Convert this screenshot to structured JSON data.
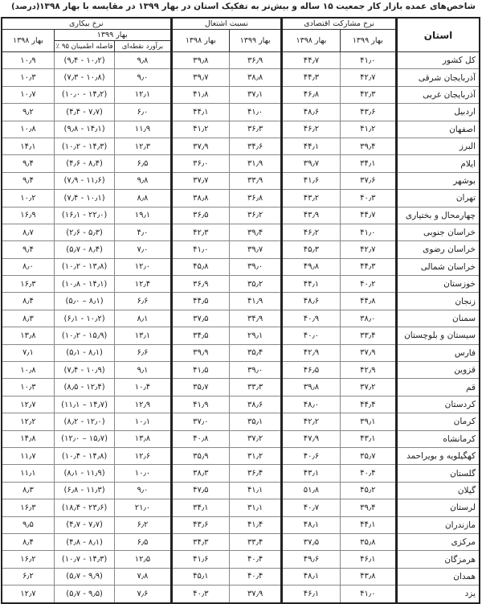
{
  "title": "شاخص‌های عمده بازار کار جمعیت ۱۵ ساله و بیش‌تر به تفکیک استان در بهار ۱۳۹۹ در مقایسه با بهار ۱۳۹۸",
  "unit": "(درصد)",
  "headers": {
    "province": "استان",
    "participation": "نرخ مشارکت اقتصادی",
    "employment": "نسبت اشتغال",
    "unemployment": "نرخ بیکاری",
    "spring1399": "بهار ۱۳۹۹",
    "spring1398": "بهار ۱۳۹۸",
    "point_estimate": "برآورد نقطه‌ای",
    "confidence_interval": "فاصله اطمینان ۹۵ ٪"
  },
  "rows": [
    {
      "province": "کل کشور",
      "values": [
        "۴۱٫۰",
        "۴۴٫۷",
        "۳۶٫۹",
        "۳۹٫۸",
        "۹٫۸",
        "(۹٫۴ - ۱۰٫۲)",
        "۱۰٫۹"
      ]
    },
    {
      "province": "آذربایجان شرقی",
      "values": [
        "۴۲٫۷",
        "۴۴٫۳",
        "۳۸٫۸",
        "۳۹٫۷",
        "۹٫۰",
        "(۷٫۳ - ۱۰٫۸)",
        "۱۰٫۳"
      ]
    },
    {
      "province": "آذربایجان غربی",
      "values": [
        "۴۲٫۳",
        "۴۶٫۸",
        "۳۷٫۱",
        "۴۱٫۸",
        "۱۲٫۱",
        "(۱۰٫۰ - ۱۴٫۲)",
        "۱۰٫۷"
      ]
    },
    {
      "province": "اردبیل",
      "values": [
        "۴۳٫۶",
        "۴۸٫۶",
        "۴۱٫۰",
        "۴۴٫۱",
        "۶٫۰",
        "(۴٫۴ - ۷٫۷)",
        "۹٫۲"
      ]
    },
    {
      "province": "اصفهان",
      "values": [
        "۴۱٫۲",
        "۴۶٫۲",
        "۳۶٫۳",
        "۴۱٫۲",
        "۱۱٫۹",
        "(۹٫۸ - ۱۴٫۱)",
        "۱۰٫۸"
      ]
    },
    {
      "province": "البرز",
      "values": [
        "۳۹٫۴",
        "۴۴٫۱",
        "۳۴٫۶",
        "۳۷٫۹",
        "۱۲٫۳",
        "(۱۰٫۲ - ۱۴٫۳)",
        "۱۴٫۱"
      ]
    },
    {
      "province": "ایلام",
      "values": [
        "۳۴٫۱",
        "۳۹٫۷",
        "۳۱٫۹",
        "۳۶٫۰",
        "۶٫۵",
        "(۴٫۶ - ۸٫۴)",
        "۹٫۴"
      ]
    },
    {
      "province": "بوشهر",
      "values": [
        "۳۷٫۶",
        "۴۱٫۶",
        "۳۳٫۹",
        "۳۷٫۷",
        "۹٫۸",
        "(۷٫۹ - ۱۱٫۶)",
        "۹٫۴"
      ]
    },
    {
      "province": "تهران",
      "values": [
        "۴۰٫۳",
        "۴۳٫۲",
        "۳۶٫۸",
        "۳۸٫۸",
        "۸٫۸",
        "(۷٫۴ - ۱۰٫۱)",
        "۱۰٫۲"
      ]
    },
    {
      "province": "چهارمحال و بختیاری",
      "values": [
        "۴۴٫۷",
        "۴۳٫۹",
        "۳۶٫۲",
        "۳۶٫۵",
        "۱۹٫۱",
        "(۱۶٫۱ - ۲۲٫۰)",
        "۱۶٫۹"
      ]
    },
    {
      "province": "خراسان جنوبی",
      "values": [
        "۴۱٫۰",
        "۴۶٫۲",
        "۳۹٫۴",
        "۴۲٫۳",
        "۴٫۰",
        "(۲٫۶ - ۵٫۳)",
        "۸٫۷"
      ]
    },
    {
      "province": "خراسان رضوی",
      "values": [
        "۴۲٫۷",
        "۴۵٫۳",
        "۳۹٫۷",
        "۴۱٫۰",
        "۷٫۰",
        "(۵٫۷ - ۸٫۴)",
        "۹٫۴"
      ]
    },
    {
      "province": "خراسان شمالی",
      "values": [
        "۴۴٫۳",
        "۴۹٫۸",
        "۳۹٫۰",
        "۴۵٫۸",
        "۱۲٫۰",
        "(۱۰٫۲ - ۱۳٫۸)",
        "۸٫۰"
      ]
    },
    {
      "province": "خوزستان",
      "values": [
        "۴۰٫۲",
        "۴۴٫۱",
        "۳۵٫۲",
        "۳۶٫۹",
        "۱۲٫۴",
        "(۱۰٫۸ - ۱۴٫۱)",
        "۱۶٫۳"
      ]
    },
    {
      "province": "زنجان",
      "values": [
        "۴۴٫۸",
        "۴۸٫۶",
        "۴۱٫۹",
        "۴۴٫۵",
        "۶٫۶",
        "(۵٫۰ – ۸٫۱)",
        "۸٫۴"
      ]
    },
    {
      "province": "سمنان",
      "values": [
        "۳۸٫۰",
        "۴۰٫۹",
        "۳۴٫۹",
        "۳۷٫۵",
        "۸٫۱",
        "(۶٫۱ - ۱۰٫۲)",
        "۸٫۳"
      ]
    },
    {
      "province": "سیستان و بلوچستان",
      "values": [
        "۳۳٫۴",
        "۴۰٫۰",
        "۲۹٫۱",
        "۳۴٫۵",
        "۱۳٫۱",
        "(۱۰٫۲ - ۱۵٫۹)",
        "۱۳٫۸"
      ]
    },
    {
      "province": "فارس",
      "values": [
        "۳۷٫۹",
        "۴۲٫۹",
        "۳۵٫۴",
        "۳۹٫۹",
        "۶٫۶",
        "(۵٫۱ - ۸٫۱)",
        "۷٫۱"
      ]
    },
    {
      "province": "قزوین",
      "values": [
        "۴۲٫۹",
        "۴۶٫۵",
        "۳۹٫۰",
        "۴۱٫۵",
        "۹٫۱",
        "(۷٫۴ - ۱۰٫۹)",
        "۱۰٫۸"
      ]
    },
    {
      "province": "قم",
      "values": [
        "۳۷٫۲",
        "۳۹٫۸",
        "۳۳٫۳",
        "۳۵٫۷",
        "۱۰٫۴",
        "(۸٫۵ - ۱۲٫۴)",
        "۱۰٫۳"
      ]
    },
    {
      "province": "کردستان",
      "values": [
        "۴۴٫۴",
        "۴۸٫۰",
        "۳۸٫۶",
        "۴۱٫۹",
        "۱۲٫۹",
        "(۱۱٫۱ – ۱۴٫۷)",
        "۱۲٫۷"
      ]
    },
    {
      "province": "کرمان",
      "values": [
        "۳۹٫۱",
        "۴۲٫۲",
        "۳۵٫۱",
        "۳۷٫۰",
        "۱۰٫۱",
        "(۸٫۲ - ۱۲٫۰)",
        "۱۲٫۲"
      ]
    },
    {
      "province": "کرمانشاه",
      "values": [
        "۴۳٫۱",
        "۴۷٫۹",
        "۳۷٫۲",
        "۴۰٫۸",
        "۱۳٫۸",
        "(۱۲٫۰ – ۱۵٫۷)",
        "۱۴٫۸"
      ]
    },
    {
      "province": "کهگیلویه و بویراحمد",
      "values": [
        "۳۵٫۷",
        "۴۰٫۶",
        "۳۱٫۲",
        "۳۵٫۹",
        "۱۲٫۶",
        "(۱۰٫۴ - ۱۴٫۸)",
        "۱۱٫۷"
      ]
    },
    {
      "province": "گلستان",
      "values": [
        "۴۰٫۴",
        "۴۳٫۱",
        "۳۶٫۴",
        "۳۸٫۳",
        "۱۰٫۰",
        "(۸٫۱ - ۱۱٫۹)",
        "۱۱٫۱"
      ]
    },
    {
      "province": "گیلان",
      "values": [
        "۴۵٫۲",
        "۵۱٫۸",
        "۴۱٫۱",
        "۴۷٫۵",
        "۹٫۰",
        "(۶٫۸ - ۱۱٫۳)",
        "۸٫۳"
      ]
    },
    {
      "province": "لرستان",
      "values": [
        "۳۹٫۴",
        "۴۰٫۷",
        "۳۱٫۱",
        "۳۴٫۱",
        "۲۱٫۰",
        "(۱۸٫۴ - ۲۳٫۶)",
        "۱۶٫۳"
      ]
    },
    {
      "province": "مازندران",
      "values": [
        "۴۴٫۱",
        "۴۸٫۱",
        "۴۱٫۴",
        "۴۳٫۶",
        "۶٫۲",
        "(۴٫۷ - ۷٫۷)",
        "۹٫۵"
      ]
    },
    {
      "province": "مرکزی",
      "values": [
        "۳۵٫۸",
        "۳۷٫۵",
        "۳۳٫۴",
        "۳۴٫۳",
        "۶٫۵",
        "(۴٫۸ - ۸٫۱)",
        "۸٫۴"
      ]
    },
    {
      "province": "هرمزگان",
      "values": [
        "۴۶٫۱",
        "۴۹٫۶",
        "۴۰٫۴",
        "۴۱٫۶",
        "۱۲٫۵",
        "(۱۰٫۷ - ۱۴٫۳)",
        "۱۶٫۲"
      ]
    },
    {
      "province": "همدان",
      "values": [
        "۴۳٫۸",
        "۴۸٫۱",
        "۴۰٫۴",
        "۴۵٫۱",
        "۷٫۸",
        "(۵٫۷ - ۹٫۹)",
        "۶٫۲"
      ]
    },
    {
      "province": "یزد",
      "values": [
        "۴۱٫۰",
        "۴۶٫۱",
        "۳۷٫۹",
        "۴۰٫۳",
        "۷٫۶",
        "(۵٫۷ - ۹٫۵)",
        "۱۲٫۷"
      ]
    }
  ]
}
